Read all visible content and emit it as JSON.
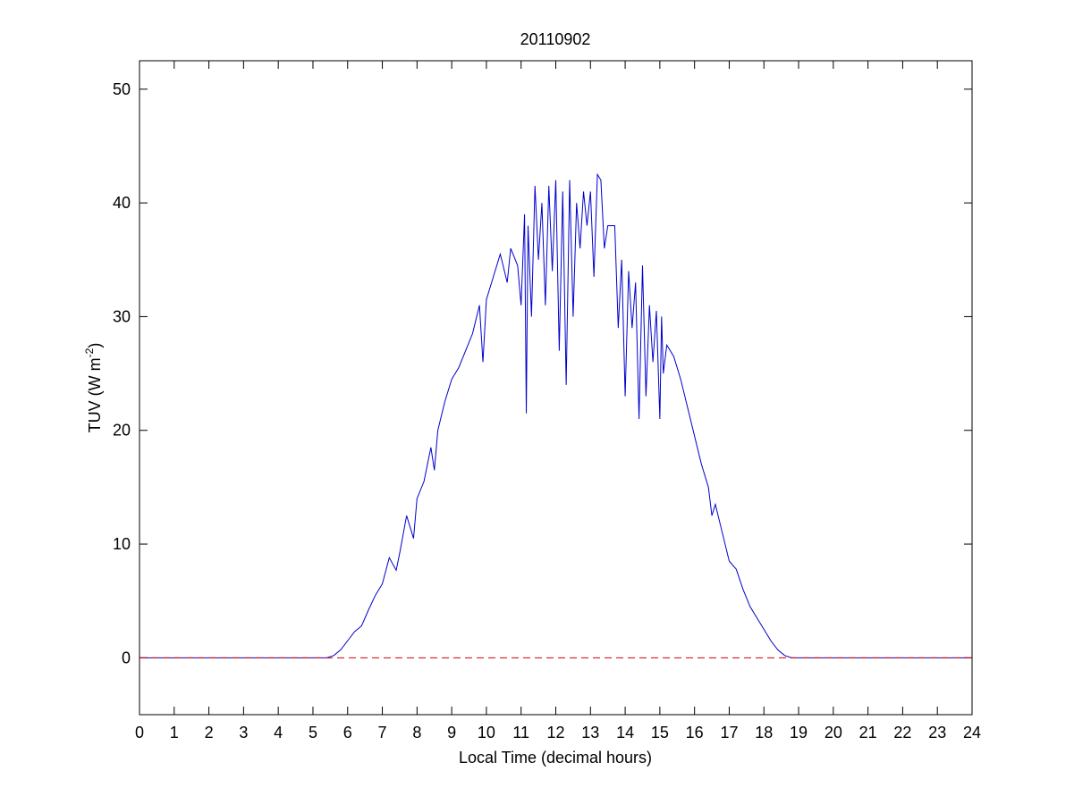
{
  "chart_data": {
    "type": "line",
    "title": "20110902",
    "xlabel": "Local Time (decimal hours)",
    "ylabel_parts": [
      "TUV (W m",
      "-2",
      ")"
    ],
    "xlim": [
      0,
      24
    ],
    "ylim": [
      -5,
      52.5
    ],
    "xticks": [
      0,
      1,
      2,
      3,
      4,
      5,
      6,
      7,
      8,
      9,
      10,
      11,
      12,
      13,
      14,
      15,
      16,
      17,
      18,
      19,
      20,
      21,
      22,
      23,
      24
    ],
    "yticks": [
      0,
      10,
      20,
      30,
      40,
      50
    ],
    "reference_line": {
      "value": 0,
      "color": "#cc0000",
      "dashed": true
    },
    "series": [
      {
        "color": "#0000cc",
        "x": [
          0,
          5.4,
          5.6,
          5.8,
          6.0,
          6.2,
          6.4,
          6.6,
          6.8,
          7.0,
          7.2,
          7.4,
          7.5,
          7.7,
          7.8,
          7.9,
          8.0,
          8.2,
          8.4,
          8.5,
          8.6,
          8.8,
          9.0,
          9.2,
          9.4,
          9.6,
          9.8,
          9.9,
          10.0,
          10.2,
          10.4,
          10.6,
          10.7,
          10.9,
          11.0,
          11.1,
          11.15,
          11.2,
          11.3,
          11.4,
          11.5,
          11.6,
          11.7,
          11.8,
          11.9,
          12.0,
          12.1,
          12.2,
          12.3,
          12.4,
          12.5,
          12.6,
          12.7,
          12.8,
          12.9,
          13.0,
          13.1,
          13.2,
          13.3,
          13.4,
          13.5,
          13.7,
          13.8,
          13.9,
          14.0,
          14.1,
          14.2,
          14.3,
          14.4,
          14.5,
          14.6,
          14.7,
          14.8,
          14.9,
          15.0,
          15.05,
          15.1,
          15.2,
          15.4,
          15.6,
          15.8,
          16.0,
          16.2,
          16.4,
          16.5,
          16.6,
          16.8,
          17.0,
          17.2,
          17.4,
          17.6,
          17.8,
          18.0,
          18.2,
          18.4,
          18.6,
          18.8,
          24
        ],
        "values": [
          0,
          0,
          0.2,
          0.7,
          1.5,
          2.3,
          2.8,
          4.2,
          5.5,
          6.5,
          8.8,
          7.7,
          9.2,
          12.5,
          11.5,
          10.5,
          14,
          15.5,
          18.5,
          16.5,
          20,
          22.5,
          24.5,
          25.5,
          27,
          28.5,
          31,
          26,
          31.5,
          33.5,
          35.5,
          33,
          36,
          34.5,
          31,
          39,
          21.5,
          38,
          30,
          41.5,
          35,
          40,
          31,
          41.5,
          34,
          42,
          27,
          41,
          24,
          42,
          30,
          40,
          36,
          41,
          38,
          41,
          33.5,
          42.5,
          42,
          36,
          38,
          38,
          29,
          35,
          23,
          34,
          29,
          33,
          21,
          34.5,
          23,
          31,
          26,
          30.5,
          21,
          30,
          25,
          27.5,
          26.5,
          24.5,
          22,
          19.5,
          17,
          15,
          12.5,
          13.5,
          11,
          8.5,
          7.8,
          6,
          4.5,
          3.5,
          2.5,
          1.5,
          0.7,
          0.2,
          0,
          0
        ]
      }
    ]
  }
}
